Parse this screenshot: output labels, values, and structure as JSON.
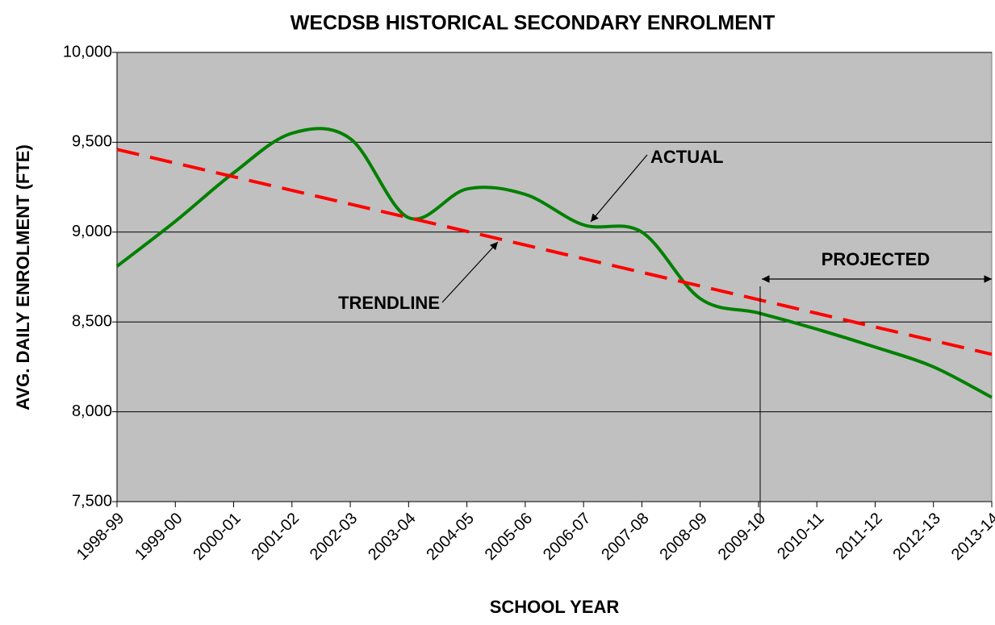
{
  "chart_data": {
    "type": "line",
    "title": "WECDSB HISTORICAL SECONDARY ENROLMENT",
    "x_label": "SCHOOL YEAR",
    "y_label": "AVG. DAILY ENROLMENT (FTE)",
    "annotations": [
      "PROJECTED"
    ],
    "categories": [
      "1998-99",
      "1999-00",
      "2000-01",
      "2001-02",
      "2002-03",
      "2003-04",
      "2004-05",
      "2005-06",
      "2006-07",
      "2007-08",
      "2008-09",
      "2009-10",
      "2010-11",
      "2011-12",
      "2012-13",
      "2013-14"
    ],
    "series": [
      {
        "name": "ACTUAL",
        "color": "#008000",
        "dashed": false,
        "smooth": true,
        "values": [
          8810,
          9060,
          9330,
          9550,
          9520,
          9080,
          9240,
          9210,
          9040,
          9000,
          8630,
          8550,
          8460,
          8360,
          8250,
          8080
        ]
      },
      {
        "name": "TRENDLINE",
        "color": "#ff0000",
        "dashed": true,
        "smooth": false,
        "values": [
          9460,
          9384,
          9308,
          9232,
          9156,
          9080,
          9004,
          8928,
          8852,
          8776,
          8700,
          8624,
          8548,
          8472,
          8396,
          8320
        ]
      }
    ],
    "ylim": [
      7500,
      10000
    ],
    "yticks": [
      {
        "value": 7500,
        "label": "7,500"
      },
      {
        "value": 8000,
        "label": "8,000"
      },
      {
        "value": 8500,
        "label": "8,500"
      },
      {
        "value": 9000,
        "label": "9,000"
      },
      {
        "value": 9500,
        "label": "9,500"
      },
      {
        "value": 10000,
        "label": "10,000"
      }
    ],
    "grid": true,
    "plot_background": "#c0c0c0"
  }
}
